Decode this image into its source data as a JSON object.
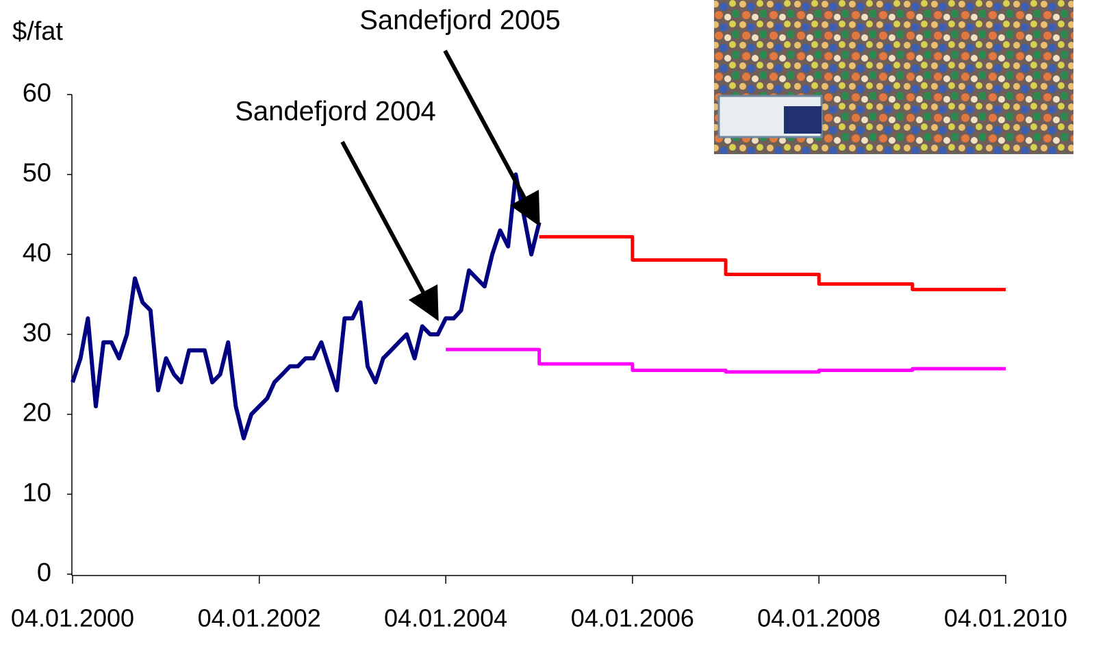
{
  "chart_data": {
    "type": "line",
    "y_label": "$/fat",
    "xlim": [
      "2000-01-04",
      "2010-01-04"
    ],
    "xticks": [
      {
        "value": "2000-01-04",
        "label": "04.01.2000"
      },
      {
        "value": "2002-01-04",
        "label": "04.01.2002"
      },
      {
        "value": "2004-01-04",
        "label": "04.01.2004"
      },
      {
        "value": "2006-01-04",
        "label": "04.01.2006"
      },
      {
        "value": "2008-01-04",
        "label": "04.01.2008"
      },
      {
        "value": "2010-01-04",
        "label": "04.01.2010"
      }
    ],
    "ylim": [
      0,
      60
    ],
    "yticks": [
      0,
      10,
      20,
      30,
      40,
      50,
      60
    ],
    "grid": false,
    "annotations": [
      "Sandefjord 2004",
      "Sandefjord 2005"
    ],
    "series": [
      {
        "color": "#000080",
        "step": false,
        "x": [
          "2000-01-04",
          "2000-02-04",
          "2000-03-04",
          "2000-04-04",
          "2000-05-04",
          "2000-06-04",
          "2000-07-04",
          "2000-08-04",
          "2000-09-04",
          "2000-10-04",
          "2000-11-04",
          "2000-12-04",
          "2001-01-04",
          "2001-02-04",
          "2001-03-04",
          "2001-04-04",
          "2001-05-04",
          "2001-06-04",
          "2001-07-04",
          "2001-08-04",
          "2001-09-04",
          "2001-10-04",
          "2001-11-04",
          "2001-12-04",
          "2002-01-04",
          "2002-02-04",
          "2002-03-04",
          "2002-04-04",
          "2002-05-04",
          "2002-06-04",
          "2002-07-04",
          "2002-08-04",
          "2002-09-04",
          "2002-10-04",
          "2002-11-04",
          "2002-12-04",
          "2003-01-04",
          "2003-02-04",
          "2003-03-04",
          "2003-04-04",
          "2003-05-04",
          "2003-06-04",
          "2003-07-04",
          "2003-08-04",
          "2003-09-04",
          "2003-10-04",
          "2003-11-04",
          "2003-12-04",
          "2004-01-04",
          "2004-02-04",
          "2004-03-04",
          "2004-04-04",
          "2004-05-04",
          "2004-06-04",
          "2004-07-04",
          "2004-08-04",
          "2004-09-04",
          "2004-10-04",
          "2004-11-04",
          "2004-12-04",
          "2005-01-04"
        ],
        "values": [
          24,
          27,
          32,
          21,
          29,
          29,
          27,
          30,
          37,
          34,
          33,
          23,
          27,
          25,
          24,
          28,
          28,
          28,
          24,
          25,
          29,
          21,
          17,
          20,
          21,
          22,
          24,
          25,
          26,
          26,
          27,
          27,
          29,
          26,
          23,
          32,
          32,
          34,
          26,
          24,
          27,
          28,
          29,
          30,
          27,
          31,
          30,
          30,
          32,
          32,
          33,
          38,
          37,
          36,
          40,
          43,
          41,
          50,
          45,
          40,
          44
        ]
      },
      {
        "color": "#ff0000",
        "step": true,
        "x": [
          "2005-01-04",
          "2006-01-04",
          "2007-01-04",
          "2008-01-04",
          "2009-01-04",
          "2010-01-04"
        ],
        "values": [
          42.2,
          39.3,
          37.5,
          36.3,
          35.6,
          35.6
        ]
      },
      {
        "color": "#ff00ff",
        "step": true,
        "x": [
          "2004-01-04",
          "2005-01-04",
          "2006-01-04",
          "2007-01-04",
          "2008-01-04",
          "2009-01-04",
          "2010-01-04"
        ],
        "values": [
          28.1,
          26.3,
          25.5,
          25.3,
          25.5,
          25.7,
          25.7
        ]
      }
    ]
  }
}
